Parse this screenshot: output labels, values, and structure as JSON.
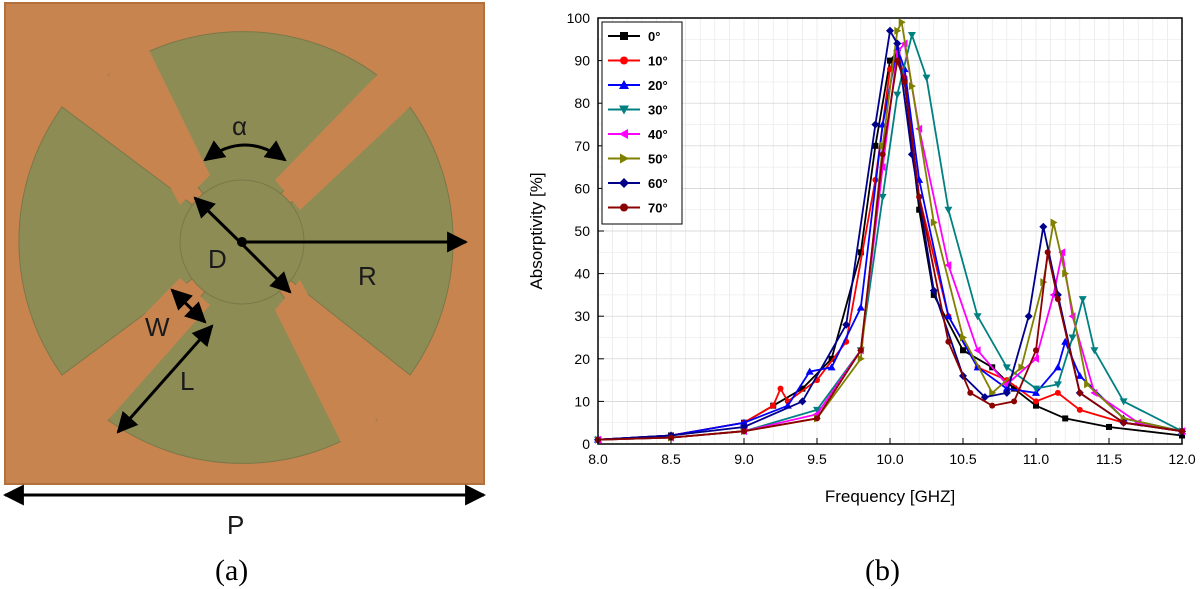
{
  "figure": {
    "panel_a": {
      "caption": "(a)",
      "labels": {
        "alpha": "α",
        "D": "D",
        "R": "R",
        "W": "W",
        "L": "L",
        "P": "P"
      },
      "colors": {
        "substrate": "#c8844f",
        "patch": "#8e8c55",
        "arrow": "#000000"
      }
    },
    "panel_b": {
      "caption": "(b)"
    }
  },
  "chart_data": {
    "type": "line",
    "xlabel": "Frequency [GHZ]",
    "ylabel": "Absorptivity [%]",
    "xlim": [
      8.0,
      12.0
    ],
    "ylim": [
      0,
      100
    ],
    "x_ticks": [
      "8.0",
      "8.5",
      "9.0",
      "9.5",
      "10.0",
      "10.5",
      "11.0",
      "11.5",
      "12.0"
    ],
    "y_ticks": [
      "0",
      "10",
      "20",
      "30",
      "40",
      "50",
      "60",
      "70",
      "80",
      "90",
      "100"
    ],
    "grid": true,
    "legend_position": "top-left",
    "series": [
      {
        "name": "0°",
        "color": "#000000",
        "marker": "square",
        "points": [
          [
            8.0,
            1
          ],
          [
            8.5,
            2
          ],
          [
            9.0,
            5
          ],
          [
            9.2,
            9
          ],
          [
            9.4,
            13
          ],
          [
            9.6,
            20
          ],
          [
            9.8,
            45
          ],
          [
            9.9,
            70
          ],
          [
            10.0,
            90
          ],
          [
            10.05,
            92
          ],
          [
            10.1,
            85
          ],
          [
            10.2,
            55
          ],
          [
            10.3,
            35
          ],
          [
            10.5,
            22
          ],
          [
            10.7,
            18
          ],
          [
            10.85,
            13
          ],
          [
            11.0,
            9
          ],
          [
            11.2,
            6
          ],
          [
            11.5,
            4
          ],
          [
            12.0,
            2
          ]
        ]
      },
      {
        "name": "10°",
        "color": "#ff0000",
        "marker": "circle",
        "points": [
          [
            8.0,
            1
          ],
          [
            8.5,
            2
          ],
          [
            9.0,
            5
          ],
          [
            9.2,
            9
          ],
          [
            9.25,
            13
          ],
          [
            9.3,
            10
          ],
          [
            9.5,
            15
          ],
          [
            9.7,
            24
          ],
          [
            9.9,
            62
          ],
          [
            10.0,
            88
          ],
          [
            10.05,
            92
          ],
          [
            10.1,
            86
          ],
          [
            10.2,
            58
          ],
          [
            10.4,
            30
          ],
          [
            10.6,
            18
          ],
          [
            10.8,
            15
          ],
          [
            11.0,
            10
          ],
          [
            11.15,
            12
          ],
          [
            11.3,
            8
          ],
          [
            11.6,
            5
          ],
          [
            12.0,
            3
          ]
        ]
      },
      {
        "name": "20°",
        "color": "#0000ff",
        "marker": "triangle-up",
        "points": [
          [
            8.0,
            1
          ],
          [
            8.5,
            2
          ],
          [
            9.0,
            5
          ],
          [
            9.3,
            9
          ],
          [
            9.45,
            17
          ],
          [
            9.6,
            18
          ],
          [
            9.8,
            32
          ],
          [
            9.95,
            75
          ],
          [
            10.05,
            93
          ],
          [
            10.1,
            88
          ],
          [
            10.2,
            62
          ],
          [
            10.4,
            30
          ],
          [
            10.6,
            18
          ],
          [
            10.8,
            13
          ],
          [
            11.0,
            12
          ],
          [
            11.15,
            18
          ],
          [
            11.2,
            24
          ],
          [
            11.3,
            16
          ],
          [
            11.6,
            6
          ],
          [
            12.0,
            3
          ]
        ]
      },
      {
        "name": "30°",
        "color": "#008080",
        "marker": "triangle-down",
        "points": [
          [
            8.0,
            1
          ],
          [
            8.5,
            1.5
          ],
          [
            9.0,
            3
          ],
          [
            9.5,
            8
          ],
          [
            9.8,
            22
          ],
          [
            9.95,
            58
          ],
          [
            10.05,
            82
          ],
          [
            10.15,
            96
          ],
          [
            10.25,
            86
          ],
          [
            10.4,
            55
          ],
          [
            10.6,
            30
          ],
          [
            10.8,
            18
          ],
          [
            11.0,
            13
          ],
          [
            11.15,
            14
          ],
          [
            11.25,
            25
          ],
          [
            11.32,
            34
          ],
          [
            11.4,
            22
          ],
          [
            11.6,
            10
          ],
          [
            12.0,
            3
          ]
        ]
      },
      {
        "name": "40°",
        "color": "#ff00ff",
        "marker": "triangle-left",
        "points": [
          [
            8.0,
            1
          ],
          [
            8.5,
            1.5
          ],
          [
            9.0,
            3
          ],
          [
            9.5,
            7
          ],
          [
            9.8,
            22
          ],
          [
            9.95,
            65
          ],
          [
            10.05,
            92
          ],
          [
            10.1,
            94
          ],
          [
            10.2,
            74
          ],
          [
            10.4,
            42
          ],
          [
            10.6,
            22
          ],
          [
            10.8,
            14
          ],
          [
            11.0,
            20
          ],
          [
            11.12,
            35
          ],
          [
            11.18,
            45
          ],
          [
            11.25,
            30
          ],
          [
            11.4,
            12
          ],
          [
            11.7,
            5
          ],
          [
            12.0,
            3
          ]
        ]
      },
      {
        "name": "50°",
        "color": "#808000",
        "marker": "triangle-right",
        "points": [
          [
            8.0,
            1
          ],
          [
            8.5,
            1.5
          ],
          [
            9.0,
            3
          ],
          [
            9.5,
            6
          ],
          [
            9.8,
            20
          ],
          [
            9.95,
            70
          ],
          [
            10.05,
            97
          ],
          [
            10.08,
            99
          ],
          [
            10.15,
            84
          ],
          [
            10.3,
            52
          ],
          [
            10.5,
            25
          ],
          [
            10.7,
            12
          ],
          [
            10.9,
            18
          ],
          [
            11.05,
            38
          ],
          [
            11.12,
            52
          ],
          [
            11.2,
            40
          ],
          [
            11.35,
            14
          ],
          [
            11.6,
            6
          ],
          [
            12.0,
            3
          ]
        ]
      },
      {
        "name": "60°",
        "color": "#00008b",
        "marker": "diamond",
        "points": [
          [
            8.0,
            1
          ],
          [
            8.5,
            2
          ],
          [
            9.0,
            4
          ],
          [
            9.4,
            10
          ],
          [
            9.7,
            28
          ],
          [
            9.9,
            75
          ],
          [
            10.0,
            97
          ],
          [
            10.05,
            94
          ],
          [
            10.15,
            68
          ],
          [
            10.3,
            36
          ],
          [
            10.5,
            16
          ],
          [
            10.65,
            11
          ],
          [
            10.8,
            12
          ],
          [
            10.95,
            30
          ],
          [
            11.05,
            51
          ],
          [
            11.15,
            35
          ],
          [
            11.3,
            12
          ],
          [
            11.6,
            5
          ],
          [
            12.0,
            3
          ]
        ]
      },
      {
        "name": "70°",
        "color": "#8b0000",
        "marker": "circle",
        "points": [
          [
            8.0,
            1
          ],
          [
            8.5,
            1.5
          ],
          [
            9.0,
            3
          ],
          [
            9.5,
            6
          ],
          [
            9.8,
            22
          ],
          [
            9.95,
            68
          ],
          [
            10.05,
            90
          ],
          [
            10.1,
            85
          ],
          [
            10.2,
            58
          ],
          [
            10.4,
            24
          ],
          [
            10.55,
            12
          ],
          [
            10.7,
            9
          ],
          [
            10.85,
            10
          ],
          [
            11.0,
            22
          ],
          [
            11.08,
            45
          ],
          [
            11.15,
            34
          ],
          [
            11.3,
            12
          ],
          [
            11.6,
            5
          ],
          [
            12.0,
            3
          ]
        ]
      }
    ]
  }
}
